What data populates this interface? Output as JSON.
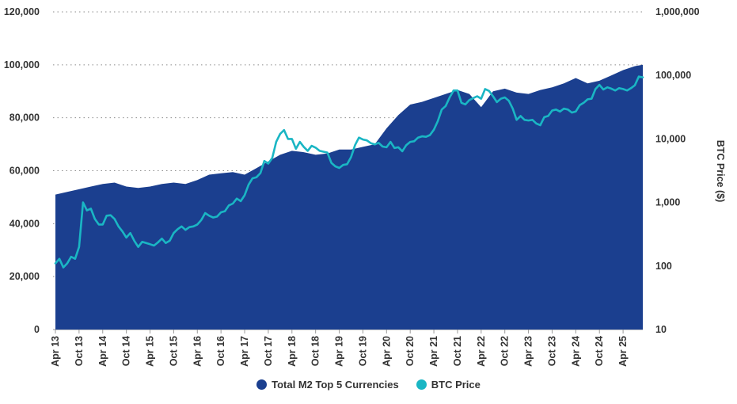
{
  "chart_data": {
    "type": "area",
    "title": "",
    "xlabel": "",
    "ylabel_left": "",
    "ylabel_right": "BTC Price ($)",
    "x_ticks": [
      "Apr 13",
      "Oct 13",
      "Apr 14",
      "Oct 14",
      "Apr 15",
      "Oct 15",
      "Apr 16",
      "Oct 16",
      "Apr 17",
      "Oct 17",
      "Apr 18",
      "Oct 18",
      "Apr 19",
      "Oct 19",
      "Apr 20",
      "Oct 20",
      "Apr 21",
      "Oct 21",
      "Apr 22",
      "Oct 22",
      "Apr 23",
      "Oct 23",
      "Apr 24",
      "Oct 24",
      "Apr 25"
    ],
    "y_left_ticks": [
      "0",
      "20,000",
      "40,000",
      "60,000",
      "80,000",
      "100,000",
      "120,000"
    ],
    "y_left_range": [
      0,
      120000
    ],
    "y_right_ticks": [
      "10",
      "100",
      "1,000",
      "10,000",
      "100,000",
      "1,000,000"
    ],
    "y_right_range_log": [
      10,
      1000000
    ],
    "y_right_scale": "log",
    "grid": "horizontal dotted",
    "legend_position": "bottom",
    "x_range_months": [
      0,
      149
    ],
    "series": [
      {
        "name": "Total M2 Top 5 Currencies",
        "color": "#1b3f8f",
        "axis": "left",
        "kind": "area",
        "month_index": [
          0,
          3,
          6,
          9,
          12,
          15,
          18,
          21,
          24,
          27,
          30,
          33,
          36,
          39,
          42,
          45,
          48,
          51,
          54,
          57,
          60,
          63,
          66,
          69,
          72,
          75,
          78,
          81,
          84,
          87,
          90,
          93,
          96,
          99,
          102,
          105,
          108,
          111,
          114,
          117,
          120,
          123,
          126,
          129,
          132,
          135,
          138,
          141,
          144,
          147,
          149
        ],
        "values": [
          51000,
          52000,
          53000,
          54000,
          55000,
          55500,
          54000,
          53500,
          54000,
          55000,
          55500,
          55000,
          56500,
          58500,
          59000,
          59500,
          58500,
          61000,
          63500,
          66000,
          67500,
          67000,
          66000,
          66500,
          68000,
          68000,
          69000,
          70000,
          76000,
          81000,
          85000,
          86000,
          87500,
          89000,
          90500,
          89000,
          84000,
          90000,
          91000,
          89500,
          89000,
          90500,
          91500,
          93000,
          95000,
          93000,
          94000,
          96000,
          98000,
          99500,
          100000
        ]
      },
      {
        "name": "BTC Price",
        "color": "#1ab6c4",
        "axis": "right",
        "kind": "line",
        "month_index": [
          0,
          1,
          2,
          3,
          4,
          5,
          6,
          7,
          8,
          9,
          10,
          11,
          12,
          13,
          14,
          15,
          16,
          17,
          18,
          19,
          20,
          21,
          22,
          23,
          24,
          25,
          26,
          27,
          28,
          29,
          30,
          31,
          32,
          33,
          34,
          35,
          36,
          37,
          38,
          39,
          40,
          41,
          42,
          43,
          44,
          45,
          46,
          47,
          48,
          49,
          50,
          51,
          52,
          53,
          54,
          55,
          56,
          57,
          58,
          59,
          60,
          61,
          62,
          63,
          64,
          65,
          66,
          67,
          68,
          69,
          70,
          71,
          72,
          73,
          74,
          75,
          76,
          77,
          78,
          79,
          80,
          81,
          82,
          83,
          84,
          85,
          86,
          87,
          88,
          89,
          90,
          91,
          92,
          93,
          94,
          95,
          96,
          97,
          98,
          99,
          100,
          101,
          102,
          103,
          104,
          105,
          106,
          107,
          108,
          109,
          110,
          111,
          112,
          113,
          114,
          115,
          116,
          117,
          118,
          119,
          120,
          121,
          122,
          123,
          124,
          125,
          126,
          127,
          128,
          129,
          130,
          131,
          132,
          133,
          134,
          135,
          136,
          137,
          138,
          139,
          140,
          141,
          142,
          143,
          144,
          145,
          146,
          147,
          148,
          149
        ],
        "values": [
          110,
          130,
          95,
          110,
          140,
          130,
          200,
          1000,
          750,
          800,
          550,
          450,
          450,
          620,
          630,
          550,
          420,
          350,
          280,
          330,
          250,
          200,
          240,
          230,
          220,
          210,
          235,
          270,
          230,
          250,
          330,
          380,
          420,
          370,
          410,
          420,
          450,
          530,
          680,
          620,
          580,
          600,
          700,
          730,
          900,
          960,
          1150,
          1050,
          1300,
          1900,
          2400,
          2500,
          2900,
          4500,
          4100,
          5000,
          9000,
          12000,
          13800,
          10000,
          10000,
          7000,
          9000,
          7500,
          6500,
          7800,
          7300,
          6500,
          6300,
          6100,
          4200,
          3700,
          3500,
          3900,
          4000,
          5200,
          8000,
          10500,
          9800,
          9500,
          8600,
          8200,
          8700,
          7600,
          7400,
          9000,
          7200,
          7400,
          6400,
          8000,
          9000,
          9200,
          10500,
          11000,
          10800,
          11500,
          14000,
          19000,
          29000,
          33000,
          45000,
          58000,
          58000,
          37000,
          35000,
          41000,
          44000,
          47000,
          43000,
          61000,
          57000,
          47000,
          38000,
          43000,
          45000,
          40000,
          30000,
          20000,
          23000,
          20000,
          19500,
          20000,
          17500,
          16500,
          22000,
          23000,
          28000,
          29000,
          27000,
          30000,
          29000,
          26000,
          27000,
          34000,
          37000,
          42000,
          43000,
          61000,
          71000,
          60000,
          65000,
          62000,
          58000,
          63000,
          61000,
          58000,
          63000,
          70000,
          96000,
          93000,
          102000,
          84000,
          95000,
          108000,
          104000,
          105000
        ]
      }
    ]
  }
}
